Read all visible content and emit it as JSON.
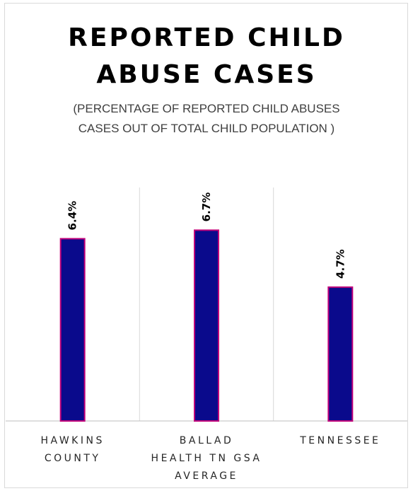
{
  "chart_data": {
    "type": "bar",
    "title_lines": [
      "REPORTED CHILD",
      "ABUSE CASES"
    ],
    "subtitle_lines": [
      "(PERCENTAGE OF REPORTED CHILD ABUSES",
      "CASES OUT OF TOTAL CHILD POPULATION )"
    ],
    "categories": [
      "HAWKINS COUNTY",
      "BALLAD HEALTH TN GSA AVERAGE",
      "TENNESSEE"
    ],
    "category_lines": [
      [
        "HAWKINS",
        "COUNTY"
      ],
      [
        "BALLAD",
        "HEALTH TN GSA",
        "AVERAGE"
      ],
      [
        "TENNESSEE"
      ]
    ],
    "values": [
      6.4,
      6.7,
      4.7
    ],
    "data_labels": [
      "6.4%",
      "6.7%",
      "4.7%"
    ],
    "ylim": [
      0,
      8.2
    ],
    "grid": "vertical category separators",
    "legend": "none",
    "colors": {
      "bar_fill": "#0a0a8c",
      "bar_outline": "#c0007a",
      "gridline": "#d9d9d9",
      "axis": "#bfbfbf"
    }
  }
}
